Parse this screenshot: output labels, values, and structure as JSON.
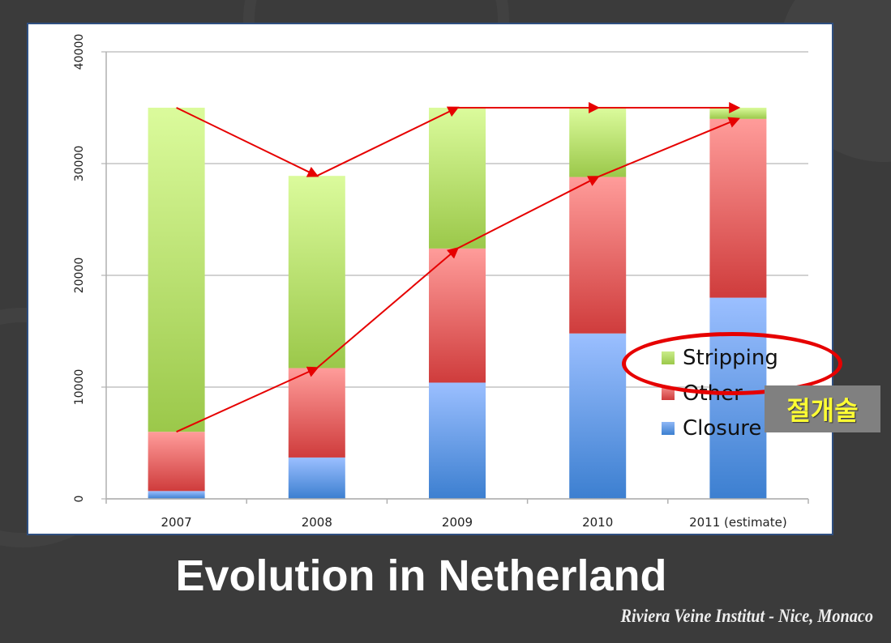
{
  "slide": {
    "title": "Evolution in Netherland",
    "credit": "Riviera Veine Institut - Nice, Monaco",
    "annotation_label": "절개술",
    "annotation_target": "Stripping"
  },
  "colors": {
    "stripping": "#9bc84a",
    "other": "#d04040",
    "closure": "#3c7fd0",
    "arrow": "#e60000",
    "annotation_text": "#ffff33",
    "annotation_bg": "#808080",
    "background": "#3b3b3b"
  },
  "chart_data": {
    "type": "bar",
    "stacked": true,
    "title": "",
    "xlabel": "",
    "ylabel": "",
    "categories": [
      "2007",
      "2008",
      "2009",
      "2010",
      "2011 (estimate)"
    ],
    "series": [
      {
        "name": "Closure",
        "values": [
          700,
          3700,
          10400,
          14800,
          18000
        ]
      },
      {
        "name": "Other",
        "values": [
          5300,
          8000,
          12000,
          14000,
          16000
        ]
      },
      {
        "name": "Stripping",
        "values": [
          29000,
          17200,
          12600,
          6200,
          1000
        ]
      }
    ],
    "ylim": [
      0,
      40000
    ],
    "yticks": [
      0,
      10000,
      20000,
      30000,
      40000
    ],
    "ytick_labels": [
      "0",
      "10000",
      "20000",
      "30000",
      "40000"
    ],
    "grid": true,
    "legend": {
      "entries": [
        "Stripping",
        "Other",
        "Closure"
      ],
      "position": "lower right inside"
    },
    "annotations": [
      {
        "type": "arrow-line",
        "description": "total trend",
        "points": [
          35000,
          28900,
          35000,
          35000,
          35000
        ]
      },
      {
        "type": "arrow-line",
        "description": "closure+other trend",
        "points": [
          6000,
          11700,
          22400,
          28800,
          34000
        ]
      },
      {
        "type": "ellipse",
        "around": "legend Stripping"
      },
      {
        "type": "label",
        "text": "절개술"
      }
    ]
  }
}
